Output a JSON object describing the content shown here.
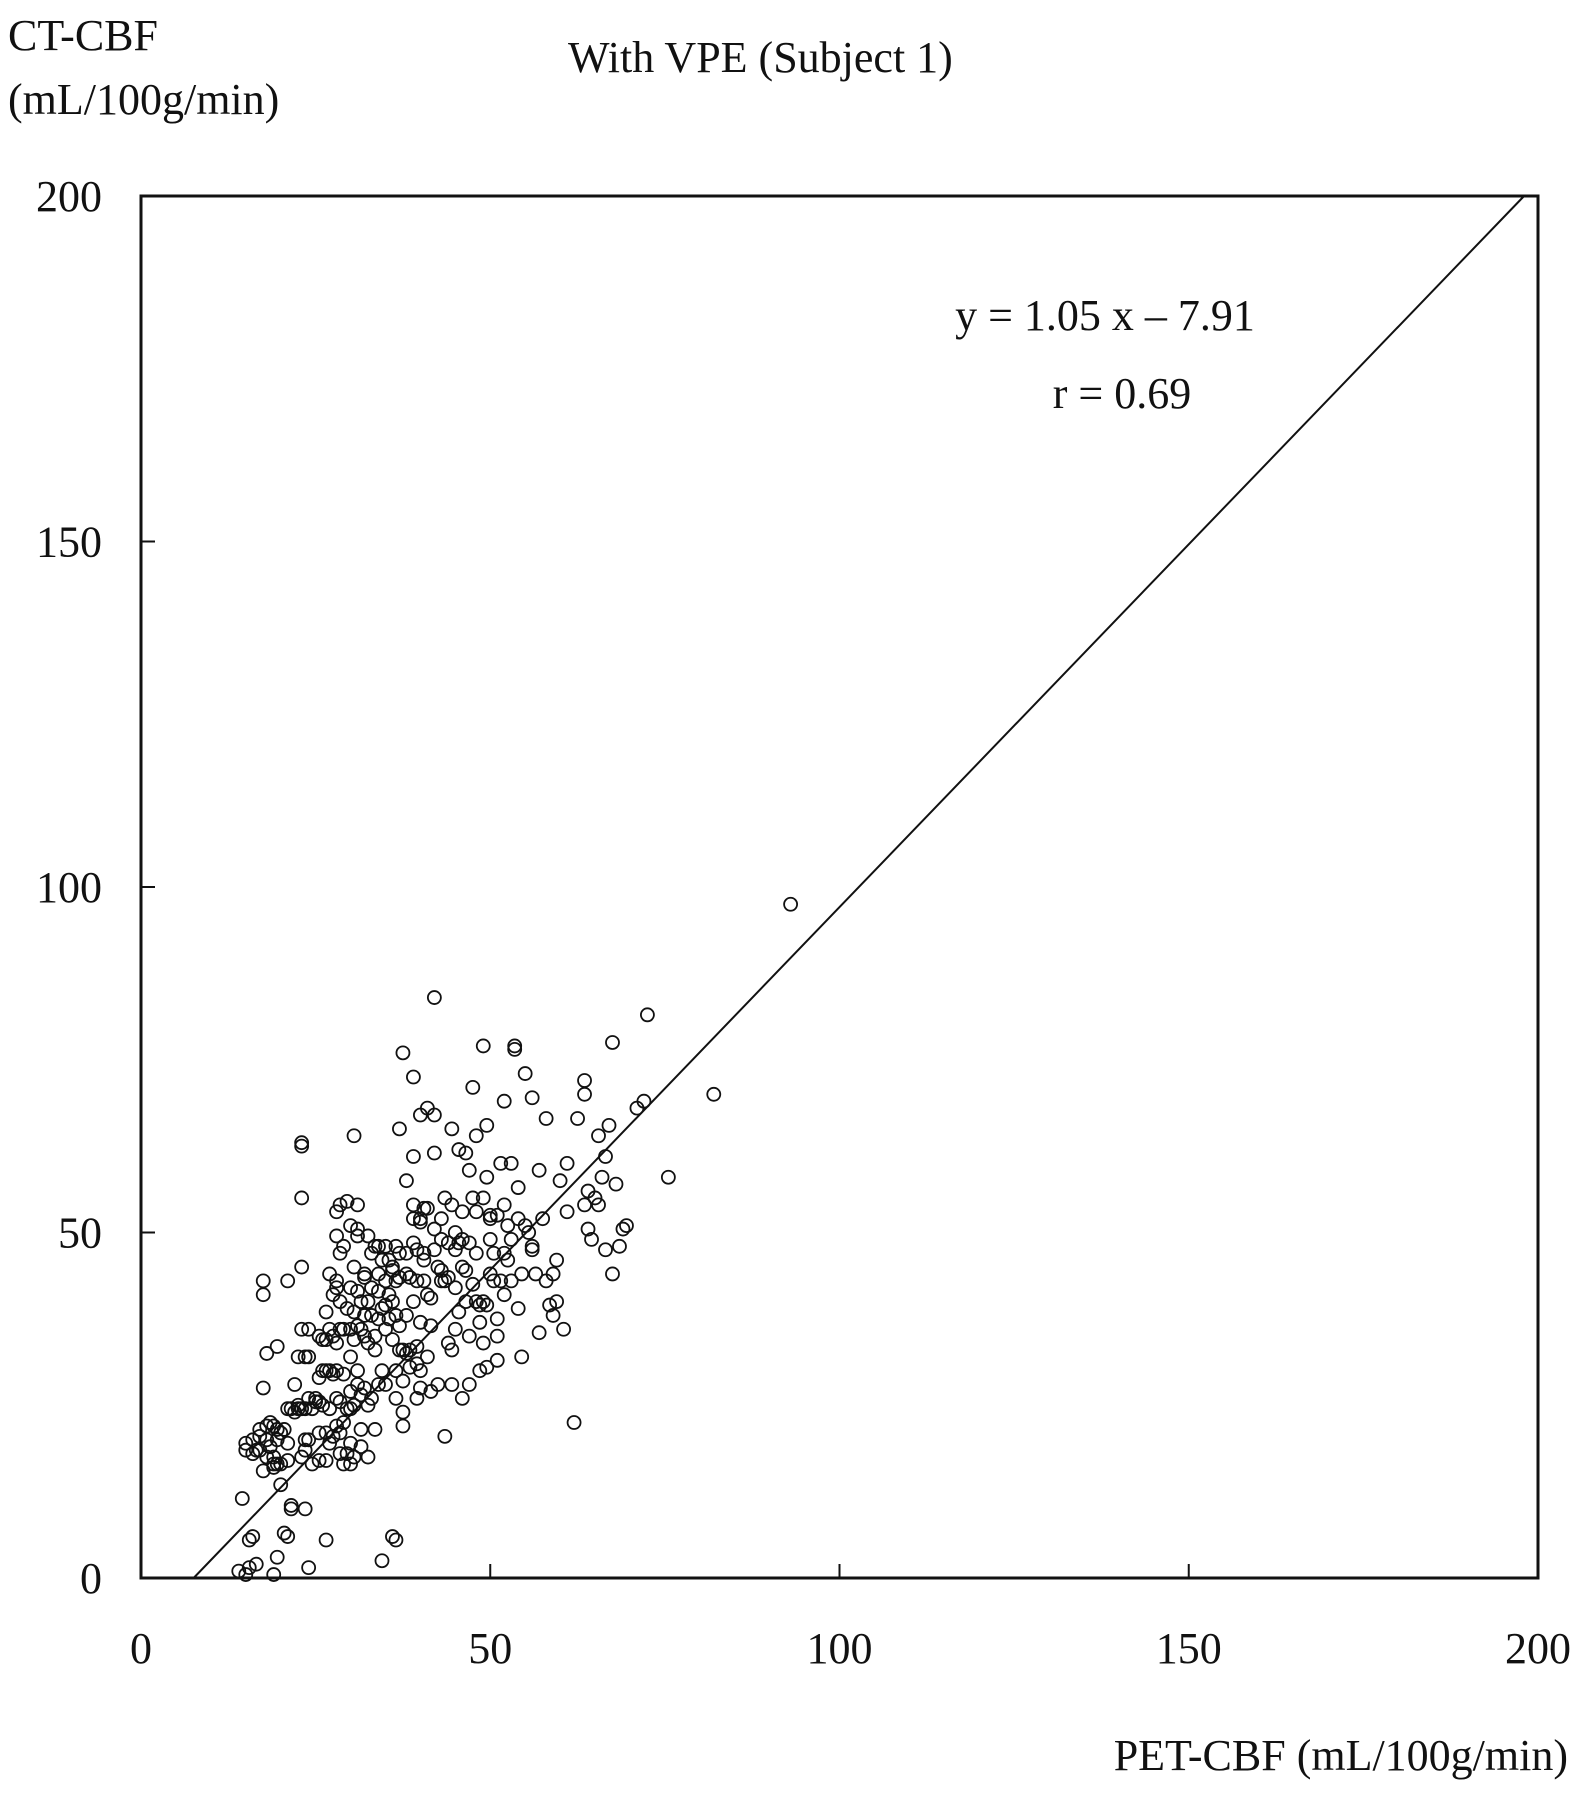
{
  "chart_data": {
    "type": "scatter",
    "title": "With VPE (Subject 1)",
    "xlabel": "PET-CBF (mL/100g/min)",
    "ylabel_line1": "CT-CBF",
    "ylabel_line2": "(mL/100g/min)",
    "xlim": [
      0,
      200
    ],
    "ylim": [
      0,
      200
    ],
    "xticks": [
      0,
      50,
      100,
      150,
      200
    ],
    "yticks": [
      0,
      50,
      100,
      150,
      200
    ],
    "grid": false,
    "marker": "open-circle",
    "annotation": {
      "equation": "y = 1.05 x – 7.91",
      "r": "r = 0.69"
    },
    "regression": {
      "slope": 1.05,
      "intercept": -7.91
    },
    "points": [
      [
        93,
        97.5
      ],
      [
        82,
        70
      ],
      [
        75.5,
        58
      ],
      [
        72.5,
        81.5
      ],
      [
        72,
        69
      ],
      [
        71,
        68
      ],
      [
        69.5,
        51
      ],
      [
        69,
        50.5
      ],
      [
        68.5,
        48
      ],
      [
        68,
        57
      ],
      [
        67.5,
        77.5
      ],
      [
        67,
        65.5
      ],
      [
        67.5,
        44
      ],
      [
        66.5,
        47.5
      ],
      [
        66.5,
        61
      ],
      [
        66,
        58
      ],
      [
        65.5,
        54
      ],
      [
        65.5,
        64
      ],
      [
        65,
        55
      ],
      [
        64.5,
        49
      ],
      [
        64,
        56
      ],
      [
        64,
        50.5
      ],
      [
        63.5,
        70
      ],
      [
        63.5,
        72
      ],
      [
        63.5,
        54
      ],
      [
        62.5,
        66.5
      ],
      [
        62,
        22.5
      ],
      [
        61,
        60
      ],
      [
        61,
        53
      ],
      [
        60.5,
        36
      ],
      [
        60,
        57.5
      ],
      [
        59.5,
        46
      ],
      [
        59.5,
        40
      ],
      [
        59,
        38
      ],
      [
        59,
        44
      ],
      [
        58.5,
        39.5
      ],
      [
        58,
        43
      ],
      [
        58,
        66.5
      ],
      [
        57.5,
        52
      ],
      [
        57,
        59
      ],
      [
        57,
        35.5
      ],
      [
        56.5,
        44
      ],
      [
        56,
        47.5
      ],
      [
        56,
        48
      ],
      [
        56,
        69.5
      ],
      [
        55.5,
        50
      ],
      [
        55,
        73
      ],
      [
        55,
        51
      ],
      [
        54.5,
        44
      ],
      [
        54.5,
        32
      ],
      [
        54,
        39
      ],
      [
        54,
        52
      ],
      [
        54,
        56.5
      ],
      [
        53.5,
        76.5
      ],
      [
        53.5,
        77
      ],
      [
        53,
        60
      ],
      [
        53,
        43
      ],
      [
        53,
        49
      ],
      [
        52.5,
        46
      ],
      [
        52.5,
        51
      ],
      [
        52,
        54
      ],
      [
        52,
        69
      ],
      [
        52,
        47
      ],
      [
        52,
        41
      ],
      [
        51.5,
        60
      ],
      [
        51.5,
        43
      ],
      [
        51,
        35
      ],
      [
        51,
        37.5
      ],
      [
        51,
        52.5
      ],
      [
        51,
        31.5
      ],
      [
        50.5,
        47
      ],
      [
        50.5,
        43
      ],
      [
        50,
        52
      ],
      [
        50,
        52.5
      ],
      [
        50,
        44
      ],
      [
        50,
        49
      ],
      [
        49.5,
        30.5
      ],
      [
        49.5,
        58
      ],
      [
        49.5,
        65.5
      ],
      [
        49.5,
        39.5
      ],
      [
        49,
        34
      ],
      [
        49,
        55
      ],
      [
        49,
        40
      ],
      [
        49,
        77
      ],
      [
        48.5,
        30
      ],
      [
        48.5,
        39.5
      ],
      [
        48.5,
        37
      ],
      [
        48,
        64
      ],
      [
        48,
        40
      ],
      [
        48,
        53
      ],
      [
        48,
        47
      ],
      [
        47.5,
        55
      ],
      [
        47.5,
        71
      ],
      [
        47.5,
        42.5
      ],
      [
        47,
        28
      ],
      [
        47,
        35
      ],
      [
        47,
        48.5
      ],
      [
        47,
        59
      ],
      [
        46.5,
        61.5
      ],
      [
        46.5,
        40
      ],
      [
        46.5,
        44.5
      ],
      [
        46,
        45
      ],
      [
        46,
        49
      ],
      [
        46,
        53
      ],
      [
        46,
        26
      ],
      [
        45.5,
        38.5
      ],
      [
        45.5,
        62
      ],
      [
        45.5,
        48.5
      ],
      [
        45,
        50
      ],
      [
        45,
        36
      ],
      [
        45,
        42
      ],
      [
        45,
        47.5
      ],
      [
        44.5,
        54
      ],
      [
        44.5,
        28
      ],
      [
        44.5,
        33
      ],
      [
        44.5,
        65
      ],
      [
        44,
        43.5
      ],
      [
        44,
        48.5
      ],
      [
        44,
        34
      ],
      [
        43.5,
        20.5
      ],
      [
        43.5,
        43
      ],
      [
        43.5,
        55
      ],
      [
        43,
        49
      ],
      [
        43,
        52
      ],
      [
        43,
        43
      ],
      [
        43,
        44.5
      ],
      [
        42.5,
        28
      ],
      [
        42.5,
        45
      ],
      [
        42,
        47.5
      ],
      [
        42,
        67
      ],
      [
        42,
        50.5
      ],
      [
        42,
        61.5
      ],
      [
        42,
        84
      ],
      [
        41.5,
        27
      ],
      [
        41.5,
        36.5
      ],
      [
        41.5,
        40.5
      ],
      [
        41,
        32
      ],
      [
        41,
        41
      ],
      [
        41,
        53.5
      ],
      [
        41,
        68
      ],
      [
        40.5,
        47
      ],
      [
        40.5,
        43
      ],
      [
        40.5,
        53.5
      ],
      [
        40.5,
        46
      ],
      [
        40,
        52
      ],
      [
        40,
        51.5
      ],
      [
        40,
        37
      ],
      [
        40,
        30
      ],
      [
        40,
        67
      ],
      [
        40,
        27.5
      ],
      [
        39.5,
        43
      ],
      [
        39.5,
        47.5
      ],
      [
        39.5,
        33.5
      ],
      [
        39.5,
        31
      ],
      [
        39.5,
        26
      ],
      [
        39,
        40
      ],
      [
        39,
        52
      ],
      [
        39,
        54
      ],
      [
        39,
        61
      ],
      [
        39,
        48.5
      ],
      [
        39,
        72.5
      ],
      [
        38.5,
        43.5
      ],
      [
        38.5,
        30.5
      ],
      [
        38.5,
        33
      ],
      [
        38,
        32.5
      ],
      [
        38,
        47
      ],
      [
        38,
        38
      ],
      [
        38,
        44
      ],
      [
        38,
        57.5
      ],
      [
        37.5,
        33
      ],
      [
        37.5,
        28.5
      ],
      [
        37.5,
        22
      ],
      [
        37.5,
        24
      ],
      [
        37.5,
        76
      ],
      [
        37,
        36.5
      ],
      [
        37,
        43.5
      ],
      [
        37,
        47
      ],
      [
        37,
        33
      ],
      [
        37,
        65
      ],
      [
        36.5,
        43
      ],
      [
        36.5,
        48
      ],
      [
        36.5,
        38
      ],
      [
        36.5,
        30
      ],
      [
        36.5,
        26
      ],
      [
        36,
        40
      ],
      [
        36,
        45
      ],
      [
        36,
        34.5
      ],
      [
        36,
        44.5
      ],
      [
        35.5,
        37.5
      ],
      [
        35.5,
        41
      ],
      [
        35.5,
        46
      ],
      [
        35,
        36
      ],
      [
        35,
        39.5
      ],
      [
        35,
        48
      ],
      [
        35,
        43
      ],
      [
        35,
        28
      ],
      [
        34.5,
        39
      ],
      [
        34.5,
        46
      ],
      [
        34.5,
        30
      ],
      [
        34,
        44
      ],
      [
        34,
        48
      ],
      [
        34,
        37.5
      ],
      [
        34,
        41.5
      ],
      [
        34,
        28
      ],
      [
        33.5,
        35
      ],
      [
        33.5,
        48
      ],
      [
        33.5,
        33
      ],
      [
        33.5,
        21.5
      ],
      [
        33,
        42
      ],
      [
        33,
        47
      ],
      [
        33,
        38
      ],
      [
        33,
        26
      ],
      [
        32.5,
        49.5
      ],
      [
        32.5,
        40
      ],
      [
        32.5,
        34
      ],
      [
        32.5,
        25
      ],
      [
        32.5,
        17.5
      ],
      [
        32,
        43.5
      ],
      [
        32,
        38
      ],
      [
        32,
        35
      ],
      [
        32,
        27.5
      ],
      [
        32,
        44
      ],
      [
        31.5,
        36
      ],
      [
        31.5,
        40
      ],
      [
        31.5,
        26.5
      ],
      [
        31.5,
        19
      ],
      [
        31.5,
        21.5
      ],
      [
        31,
        41.5
      ],
      [
        31,
        36.5
      ],
      [
        31,
        30
      ],
      [
        31,
        50.5
      ],
      [
        31,
        54
      ],
      [
        31,
        49.5
      ],
      [
        31,
        28
      ],
      [
        30.5,
        64
      ],
      [
        30.5,
        45
      ],
      [
        30.5,
        38.5
      ],
      [
        30.5,
        34.5
      ],
      [
        30.5,
        25
      ],
      [
        30.5,
        17.5
      ],
      [
        30,
        51
      ],
      [
        30,
        42
      ],
      [
        30,
        24.5
      ],
      [
        30,
        32
      ],
      [
        30,
        36
      ],
      [
        30,
        19.5
      ],
      [
        30,
        16.5
      ],
      [
        30,
        27
      ],
      [
        29.5,
        54.5
      ],
      [
        29.5,
        39
      ],
      [
        29.5,
        24.5
      ],
      [
        29.5,
        18
      ],
      [
        29,
        48
      ],
      [
        29,
        36
      ],
      [
        29,
        29.5
      ],
      [
        29,
        22.5
      ],
      [
        29,
        16.5
      ],
      [
        28.5,
        47
      ],
      [
        28.5,
        54
      ],
      [
        28.5,
        40
      ],
      [
        28.5,
        36
      ],
      [
        28.5,
        25.5
      ],
      [
        28.5,
        21
      ],
      [
        28.5,
        18
      ],
      [
        28,
        49.5
      ],
      [
        28,
        53
      ],
      [
        28,
        42
      ],
      [
        28,
        43
      ],
      [
        28,
        34
      ],
      [
        28,
        30
      ],
      [
        28,
        26
      ],
      [
        28,
        22
      ],
      [
        27.5,
        41
      ],
      [
        27.5,
        35
      ],
      [
        27.5,
        29.5
      ],
      [
        27.5,
        20.5
      ],
      [
        27,
        44
      ],
      [
        27,
        36
      ],
      [
        27,
        30
      ],
      [
        27,
        24.5
      ],
      [
        27,
        19.5
      ],
      [
        26.5,
        38.5
      ],
      [
        26.5,
        34.5
      ],
      [
        26.5,
        30
      ],
      [
        26.5,
        21
      ],
      [
        26.5,
        17
      ],
      [
        26.5,
        5.5
      ],
      [
        26,
        34.5
      ],
      [
        26,
        30
      ],
      [
        26,
        25
      ],
      [
        25.5,
        35
      ],
      [
        25.5,
        29
      ],
      [
        25.5,
        25.5
      ],
      [
        25.5,
        21
      ],
      [
        25.5,
        17
      ],
      [
        25,
        26
      ],
      [
        25,
        25.5
      ],
      [
        24.5,
        24.5
      ],
      [
        24.5,
        16.5
      ],
      [
        24,
        36
      ],
      [
        24,
        32
      ],
      [
        24,
        26
      ],
      [
        24,
        20
      ],
      [
        24,
        1.5
      ],
      [
        23.5,
        24.5
      ],
      [
        23.5,
        32
      ],
      [
        23.5,
        20
      ],
      [
        23.5,
        18.5
      ],
      [
        23,
        62.5
      ],
      [
        23,
        63
      ],
      [
        23,
        45
      ],
      [
        23,
        55
      ],
      [
        23,
        36
      ],
      [
        23,
        24.5
      ],
      [
        23,
        17.5
      ],
      [
        22.5,
        32
      ],
      [
        22.5,
        24.5
      ],
      [
        22.5,
        25
      ],
      [
        22,
        24
      ],
      [
        22,
        28
      ],
      [
        21.5,
        10
      ],
      [
        21.5,
        10.5
      ],
      [
        21.5,
        24.5
      ],
      [
        21,
        6
      ],
      [
        21,
        43
      ],
      [
        21,
        24.5
      ],
      [
        21,
        17
      ],
      [
        21,
        19.5
      ],
      [
        20.5,
        6.5
      ],
      [
        20.5,
        21.5
      ],
      [
        20,
        16.5
      ],
      [
        20,
        21
      ],
      [
        20,
        13.5
      ],
      [
        19.5,
        3
      ],
      [
        19.5,
        21.5
      ],
      [
        19.5,
        16.5
      ],
      [
        19.5,
        33.5
      ],
      [
        19.5,
        20
      ],
      [
        19,
        22
      ],
      [
        19,
        0.5
      ],
      [
        19,
        16
      ],
      [
        19,
        16.5
      ],
      [
        19,
        17.5
      ],
      [
        18.5,
        22.5
      ],
      [
        18.5,
        19
      ],
      [
        18,
        17.5
      ],
      [
        18,
        20
      ],
      [
        18,
        32.5
      ],
      [
        18,
        22
      ],
      [
        17.5,
        15.5
      ],
      [
        17.5,
        43
      ],
      [
        17.5,
        41
      ],
      [
        17.5,
        27.5
      ],
      [
        17,
        20.5
      ],
      [
        17,
        18.5
      ],
      [
        17,
        21.5
      ],
      [
        16.5,
        18.5
      ],
      [
        16.5,
        2
      ],
      [
        16,
        6
      ],
      [
        16,
        18
      ],
      [
        16,
        20
      ],
      [
        15.5,
        5.5
      ],
      [
        15.5,
        1.5
      ],
      [
        15,
        0.5
      ],
      [
        15,
        19.5
      ],
      [
        15,
        18.5
      ],
      [
        14.5,
        11.5
      ],
      [
        14,
        1
      ],
      [
        36,
        6
      ],
      [
        36.5,
        5.5
      ],
      [
        34.5,
        2.5
      ],
      [
        23.5,
        10
      ]
    ]
  }
}
